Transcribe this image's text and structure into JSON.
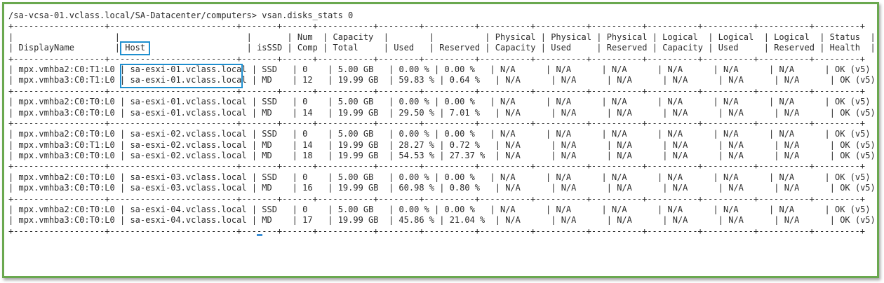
{
  "terminal": {
    "prompt_line": "/sa-vcsa-01.vclass.local/SA-Datacenter/computers> vsan.disks_stats 0",
    "separator": "+------------------+-------------------------+-------+------+-----------+--------+----------+----------+----------+----------+----------+----------+----------+---------+",
    "headers": {
      "row1": [
        "",
        "",
        "",
        "Num",
        "Capacity",
        "",
        "",
        "Physical",
        "Physical",
        "Physical",
        "Logical",
        "Logical",
        "Logical",
        "Status"
      ],
      "row2": [
        "DisplayName",
        "Host",
        "isSSD",
        "Comp",
        "Total",
        "Used",
        "Reserved",
        "Capacity",
        "Used",
        "Reserved",
        "Capacity",
        "Used",
        "Reserved",
        "Health"
      ]
    },
    "groups": [
      [
        [
          "mpx.vmhba2:C0:T1:L0",
          "sa-esxi-01.vclass.local",
          "SSD",
          "0",
          "5.00 GB",
          "0.00 %",
          "0.00 %",
          "N/A",
          "N/A",
          "N/A",
          "N/A",
          "N/A",
          "N/A",
          "OK (v5)"
        ],
        [
          "mpx.vmhba3:C0:T1:L0",
          "sa-esxi-01.vclass.local",
          "MD",
          "12",
          "19.99 GB",
          "59.83 %",
          "0.64 %",
          "N/A",
          "N/A",
          "N/A",
          "N/A",
          "N/A",
          "N/A",
          "OK (v5)"
        ]
      ],
      [
        [
          "mpx.vmhba2:C0:T0:L0",
          "sa-esxi-01.vclass.local",
          "SSD",
          "0",
          "5.00 GB",
          "0.00 %",
          "0.00 %",
          "N/A",
          "N/A",
          "N/A",
          "N/A",
          "N/A",
          "N/A",
          "OK (v5)"
        ],
        [
          "mpx.vmhba3:C0:T0:L0",
          "sa-esxi-01.vclass.local",
          "MD",
          "14",
          "19.99 GB",
          "29.50 %",
          "7.01 %",
          "N/A",
          "N/A",
          "N/A",
          "N/A",
          "N/A",
          "N/A",
          "OK (v5)"
        ]
      ],
      [
        [
          "mpx.vmhba2:C0:T0:L0",
          "sa-esxi-02.vclass.local",
          "SSD",
          "0",
          "5.00 GB",
          "0.00 %",
          "0.00 %",
          "N/A",
          "N/A",
          "N/A",
          "N/A",
          "N/A",
          "N/A",
          "OK (v5)"
        ],
        [
          "mpx.vmhba3:C0:T1:L0",
          "sa-esxi-02.vclass.local",
          "MD",
          "14",
          "19.99 GB",
          "28.27 %",
          "0.72 %",
          "N/A",
          "N/A",
          "N/A",
          "N/A",
          "N/A",
          "N/A",
          "OK (v5)"
        ],
        [
          "mpx.vmhba3:C0:T0:L0",
          "sa-esxi-02.vclass.local",
          "MD",
          "18",
          "19.99 GB",
          "54.53 %",
          "27.37 %",
          "N/A",
          "N/A",
          "N/A",
          "N/A",
          "N/A",
          "N/A",
          "OK (v5)"
        ]
      ],
      [
        [
          "mpx.vmhba2:C0:T0:L0",
          "sa-esxi-03.vclass.local",
          "SSD",
          "0",
          "5.00 GB",
          "0.00 %",
          "0.00 %",
          "N/A",
          "N/A",
          "N/A",
          "N/A",
          "N/A",
          "N/A",
          "OK (v5)"
        ],
        [
          "mpx.vmhba3:C0:T0:L0",
          "sa-esxi-03.vclass.local",
          "MD",
          "16",
          "19.99 GB",
          "60.98 %",
          "0.80 %",
          "N/A",
          "N/A",
          "N/A",
          "N/A",
          "N/A",
          "N/A",
          "OK (v5)"
        ]
      ],
      [
        [
          "mpx.vmhba2:C0:T0:L0",
          "sa-esxi-04.vclass.local",
          "SSD",
          "0",
          "5.00 GB",
          "0.00 %",
          "0.00 %",
          "N/A",
          "N/A",
          "N/A",
          "N/A",
          "N/A",
          "N/A",
          "OK (v5)"
        ],
        [
          "mpx.vmhba3:C0:T0:L0",
          "sa-esxi-04.vclass.local",
          "MD",
          "17",
          "19.99 GB",
          "45.86 %",
          "21.04 %",
          "N/A",
          "N/A",
          "N/A",
          "N/A",
          "N/A",
          "N/A",
          "OK (v5)"
        ]
      ]
    ]
  },
  "colors": {
    "frame_border": "#6aa84f",
    "highlight_box": "#1f8fcf",
    "text": "#2b2b2b"
  }
}
